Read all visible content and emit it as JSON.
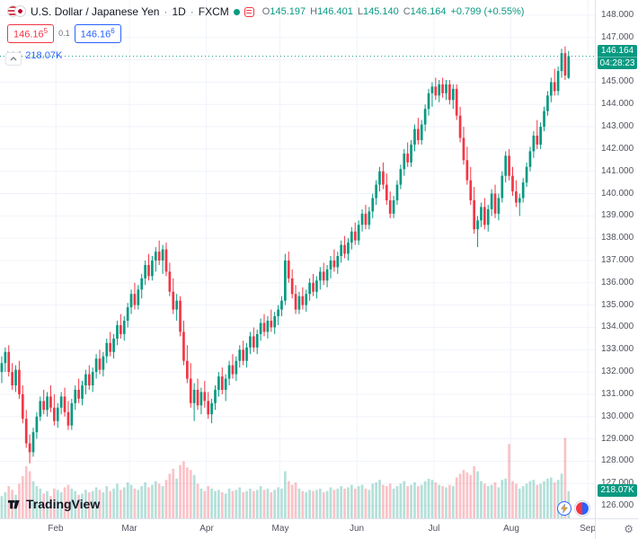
{
  "header": {
    "symbol": "U.S. Dollar / Japanese Yen",
    "sep": "·",
    "interval": "1D",
    "exchange": "FXCM",
    "ohlc": {
      "open_label": "O",
      "open": "145.197",
      "high_label": "H",
      "high": "146.401",
      "low_label": "L",
      "low": "145.140",
      "close_label": "C",
      "close": "146.164",
      "change": "+0.799 (+0.55%)"
    },
    "sell": {
      "price": "146.16",
      "sup": "5"
    },
    "spread": "0.1",
    "buy": {
      "price": "146.16",
      "sup": "6"
    },
    "volume_label": "Vol",
    "volume_value": "218.07K"
  },
  "axis": {
    "price_badge": {
      "price": "146.164",
      "countdown": "04:28:23"
    },
    "volume_badge": "218.07K"
  },
  "footer": {
    "logo_text": "TradingView"
  },
  "colors": {
    "up": "#089981",
    "down": "#f23645",
    "up_soft": "rgba(8,153,129,0.30)",
    "down_soft": "rgba(242,54,69,0.30)",
    "accent_blue": "#2962ff",
    "grid": "#f0f3fa"
  },
  "chart_data": {
    "type": "candlestick",
    "title": "U.S. Dollar / Japanese Yen",
    "interval": "1D",
    "exchange": "FXCM",
    "last_price": 146.164,
    "last_volume_k": 218.07,
    "price_range": [
      126,
      148
    ],
    "price_axis_ticks": [
      "148.000",
      "147.000",
      "146.000",
      "145.000",
      "144.000",
      "143.000",
      "142.000",
      "141.000",
      "140.000",
      "139.000",
      "138.000",
      "137.000",
      "136.000",
      "135.000",
      "134.000",
      "133.000",
      "132.000",
      "131.000",
      "130.000",
      "129.000",
      "128.000",
      "127.000",
      "126.000"
    ],
    "months": [
      {
        "label": "Feb",
        "index": 16
      },
      {
        "label": "Mar",
        "index": 37
      },
      {
        "label": "Apr",
        "index": 59
      },
      {
        "label": "May",
        "index": 80
      },
      {
        "label": "Jun",
        "index": 102
      },
      {
        "label": "Jul",
        "index": 124
      },
      {
        "label": "Aug",
        "index": 146
      },
      {
        "label": "Sep",
        "index": 168
      }
    ],
    "total_slots": 170,
    "candles_format": [
      "open",
      "high",
      "low",
      "close",
      "volume_k"
    ],
    "candles": [
      [
        132.0,
        132.7,
        131.5,
        132.4,
        180
      ],
      [
        132.4,
        133.1,
        132.0,
        132.9,
        210
      ],
      [
        132.9,
        133.2,
        131.8,
        132.0,
        260
      ],
      [
        132.0,
        132.4,
        131.2,
        131.4,
        230
      ],
      [
        131.4,
        132.3,
        131.1,
        132.1,
        190
      ],
      [
        132.1,
        132.5,
        130.8,
        131.0,
        280
      ],
      [
        131.0,
        131.4,
        129.7,
        129.9,
        340
      ],
      [
        129.9,
        130.3,
        128.6,
        128.8,
        420
      ],
      [
        128.8,
        129.2,
        127.9,
        128.4,
        380
      ],
      [
        128.4,
        129.5,
        128.2,
        129.3,
        300
      ],
      [
        129.3,
        130.2,
        129.0,
        130.0,
        260
      ],
      [
        130.0,
        130.9,
        129.8,
        130.7,
        240
      ],
      [
        130.7,
        131.2,
        130.1,
        130.3,
        200
      ],
      [
        130.3,
        131.1,
        130.0,
        130.9,
        220
      ],
      [
        130.9,
        131.4,
        130.2,
        130.4,
        180
      ],
      [
        130.4,
        131.0,
        129.6,
        129.8,
        240
      ],
      [
        129.8,
        130.6,
        129.5,
        130.4,
        230
      ],
      [
        130.4,
        131.1,
        130.1,
        130.9,
        210
      ],
      [
        130.9,
        131.3,
        130.0,
        130.2,
        250
      ],
      [
        130.2,
        130.7,
        129.4,
        129.6,
        270
      ],
      [
        129.6,
        130.8,
        129.4,
        130.6,
        240
      ],
      [
        130.6,
        131.4,
        130.3,
        131.2,
        220
      ],
      [
        131.2,
        131.7,
        130.6,
        130.8,
        190
      ],
      [
        130.8,
        131.6,
        130.5,
        131.4,
        200
      ],
      [
        131.4,
        132.1,
        131.0,
        131.9,
        230
      ],
      [
        131.9,
        132.3,
        131.2,
        131.4,
        210
      ],
      [
        131.4,
        132.2,
        131.1,
        132.0,
        220
      ],
      [
        132.0,
        132.8,
        131.7,
        132.6,
        250
      ],
      [
        132.6,
        133.0,
        131.9,
        132.1,
        230
      ],
      [
        132.1,
        132.9,
        131.8,
        132.7,
        210
      ],
      [
        132.7,
        133.5,
        132.4,
        133.3,
        260
      ],
      [
        133.3,
        133.8,
        132.7,
        132.9,
        220
      ],
      [
        132.9,
        133.7,
        132.6,
        133.5,
        240
      ],
      [
        133.5,
        134.3,
        133.2,
        134.1,
        280
      ],
      [
        134.1,
        134.6,
        133.5,
        133.7,
        230
      ],
      [
        133.7,
        134.5,
        133.4,
        134.3,
        250
      ],
      [
        134.3,
        135.1,
        134.0,
        134.9,
        290
      ],
      [
        134.9,
        135.7,
        134.6,
        135.5,
        270
      ],
      [
        135.5,
        136.0,
        134.8,
        135.0,
        240
      ],
      [
        135.0,
        135.9,
        134.8,
        135.7,
        230
      ],
      [
        135.7,
        136.4,
        135.3,
        136.2,
        260
      ],
      [
        136.2,
        137.0,
        135.9,
        136.8,
        290
      ],
      [
        136.8,
        137.3,
        136.1,
        136.3,
        250
      ],
      [
        136.3,
        137.2,
        136.1,
        137.0,
        270
      ],
      [
        137.0,
        137.6,
        136.5,
        137.4,
        300
      ],
      [
        137.4,
        137.9,
        136.8,
        137.0,
        280
      ],
      [
        137.0,
        137.7,
        136.4,
        137.5,
        260
      ],
      [
        137.5,
        137.8,
        136.3,
        136.5,
        310
      ],
      [
        136.5,
        136.9,
        135.4,
        135.6,
        360
      ],
      [
        135.6,
        136.2,
        134.6,
        134.8,
        400
      ],
      [
        134.8,
        135.5,
        134.3,
        135.2,
        320
      ],
      [
        135.2,
        135.4,
        133.6,
        133.8,
        430
      ],
      [
        133.8,
        134.3,
        132.3,
        132.5,
        460
      ],
      [
        132.5,
        133.2,
        131.5,
        131.7,
        410
      ],
      [
        131.7,
        132.4,
        130.4,
        130.6,
        390
      ],
      [
        130.6,
        131.5,
        129.8,
        131.2,
        350
      ],
      [
        131.2,
        131.7,
        130.3,
        130.5,
        280
      ],
      [
        130.5,
        131.3,
        130.1,
        131.1,
        240
      ],
      [
        131.1,
        131.6,
        130.4,
        130.7,
        220
      ],
      [
        130.7,
        131.1,
        129.9,
        130.1,
        260
      ],
      [
        130.1,
        130.8,
        129.7,
        130.6,
        240
      ],
      [
        130.6,
        131.4,
        130.3,
        131.2,
        220
      ],
      [
        131.2,
        132.0,
        130.9,
        131.8,
        230
      ],
      [
        131.8,
        132.2,
        131.0,
        131.2,
        210
      ],
      [
        131.2,
        131.9,
        130.7,
        131.7,
        200
      ],
      [
        131.7,
        132.5,
        131.4,
        132.3,
        240
      ],
      [
        132.3,
        132.8,
        131.7,
        131.9,
        220
      ],
      [
        131.9,
        132.7,
        131.6,
        132.5,
        230
      ],
      [
        132.5,
        133.2,
        132.2,
        133.0,
        250
      ],
      [
        133.0,
        133.4,
        132.3,
        132.5,
        210
      ],
      [
        132.5,
        133.3,
        132.2,
        133.1,
        220
      ],
      [
        133.1,
        133.8,
        132.8,
        133.6,
        240
      ],
      [
        133.6,
        134.0,
        132.9,
        133.1,
        220
      ],
      [
        133.1,
        133.9,
        132.8,
        133.7,
        230
      ],
      [
        133.7,
        134.4,
        133.4,
        134.2,
        260
      ],
      [
        134.2,
        134.6,
        133.6,
        133.8,
        230
      ],
      [
        133.8,
        134.5,
        133.5,
        134.3,
        240
      ],
      [
        134.3,
        134.8,
        133.8,
        134.0,
        210
      ],
      [
        134.0,
        134.7,
        133.7,
        134.5,
        230
      ],
      [
        134.5,
        135.0,
        134.1,
        134.8,
        250
      ],
      [
        134.8,
        135.4,
        134.5,
        135.2,
        240
      ],
      [
        135.2,
        137.3,
        135.0,
        137.0,
        380
      ],
      [
        137.0,
        137.4,
        136.0,
        136.2,
        300
      ],
      [
        136.2,
        136.6,
        135.3,
        135.5,
        270
      ],
      [
        135.5,
        135.9,
        134.6,
        134.8,
        290
      ],
      [
        134.8,
        135.6,
        134.6,
        135.4,
        240
      ],
      [
        135.4,
        135.8,
        134.8,
        135.0,
        220
      ],
      [
        135.0,
        135.7,
        134.7,
        135.5,
        210
      ],
      [
        135.5,
        136.2,
        135.2,
        136.0,
        230
      ],
      [
        136.0,
        136.4,
        135.4,
        135.6,
        220
      ],
      [
        135.6,
        136.3,
        135.3,
        136.1,
        230
      ],
      [
        136.1,
        136.7,
        135.7,
        136.5,
        240
      ],
      [
        136.5,
        136.9,
        135.9,
        136.1,
        210
      ],
      [
        136.1,
        136.8,
        135.8,
        136.6,
        220
      ],
      [
        136.6,
        137.2,
        136.2,
        137.0,
        250
      ],
      [
        137.0,
        137.5,
        136.5,
        136.7,
        230
      ],
      [
        136.7,
        137.4,
        136.4,
        137.2,
        240
      ],
      [
        137.2,
        137.9,
        136.9,
        137.7,
        260
      ],
      [
        137.7,
        138.1,
        137.1,
        137.3,
        240
      ],
      [
        137.3,
        138.0,
        137.0,
        137.8,
        250
      ],
      [
        137.8,
        138.5,
        137.5,
        138.3,
        270
      ],
      [
        138.3,
        138.7,
        137.7,
        137.9,
        240
      ],
      [
        137.9,
        138.8,
        137.7,
        138.6,
        260
      ],
      [
        138.6,
        139.3,
        138.3,
        139.1,
        270
      ],
      [
        139.1,
        139.5,
        138.4,
        138.6,
        240
      ],
      [
        138.6,
        139.4,
        138.4,
        139.2,
        230
      ],
      [
        139.2,
        140.0,
        138.9,
        139.8,
        280
      ],
      [
        139.8,
        140.6,
        139.5,
        140.4,
        290
      ],
      [
        140.4,
        141.2,
        140.1,
        141.0,
        310
      ],
      [
        141.0,
        141.4,
        140.2,
        140.4,
        270
      ],
      [
        140.4,
        140.9,
        139.5,
        139.7,
        260
      ],
      [
        139.7,
        140.1,
        138.9,
        139.1,
        280
      ],
      [
        139.1,
        139.9,
        138.9,
        139.7,
        240
      ],
      [
        139.7,
        140.6,
        139.5,
        140.4,
        260
      ],
      [
        140.4,
        141.3,
        140.2,
        141.1,
        280
      ],
      [
        141.1,
        142.0,
        140.8,
        141.8,
        300
      ],
      [
        141.8,
        142.3,
        141.2,
        141.4,
        260
      ],
      [
        141.4,
        142.4,
        141.2,
        142.2,
        270
      ],
      [
        142.2,
        143.1,
        141.9,
        142.9,
        290
      ],
      [
        142.9,
        143.4,
        142.2,
        142.4,
        260
      ],
      [
        142.4,
        143.3,
        142.2,
        143.1,
        270
      ],
      [
        143.1,
        144.0,
        142.8,
        143.8,
        300
      ],
      [
        143.8,
        144.7,
        143.5,
        144.5,
        320
      ],
      [
        144.5,
        145.0,
        143.9,
        144.8,
        310
      ],
      [
        144.8,
        145.2,
        144.2,
        144.4,
        290
      ],
      [
        144.4,
        145.1,
        144.1,
        144.9,
        270
      ],
      [
        144.9,
        145.2,
        144.3,
        144.5,
        260
      ],
      [
        144.5,
        145.1,
        144.2,
        144.9,
        250
      ],
      [
        144.9,
        145.1,
        144.0,
        144.2,
        270
      ],
      [
        144.2,
        144.9,
        143.8,
        144.7,
        260
      ],
      [
        144.7,
        144.9,
        143.3,
        143.5,
        330
      ],
      [
        143.5,
        143.9,
        142.3,
        142.5,
        360
      ],
      [
        142.5,
        143.0,
        141.3,
        141.5,
        390
      ],
      [
        141.5,
        142.1,
        140.4,
        140.6,
        370
      ],
      [
        140.6,
        141.2,
        139.5,
        139.7,
        350
      ],
      [
        139.7,
        140.3,
        138.2,
        138.4,
        420
      ],
      [
        138.4,
        139.0,
        137.6,
        138.8,
        380
      ],
      [
        138.8,
        139.6,
        138.5,
        139.4,
        300
      ],
      [
        139.4,
        139.8,
        138.4,
        138.6,
        280
      ],
      [
        138.6,
        139.5,
        138.3,
        139.3,
        260
      ],
      [
        139.3,
        140.2,
        139.0,
        140.0,
        270
      ],
      [
        140.0,
        140.4,
        138.9,
        139.1,
        290
      ],
      [
        139.1,
        140.0,
        138.8,
        139.8,
        250
      ],
      [
        139.8,
        141.0,
        139.6,
        140.8,
        310
      ],
      [
        140.8,
        141.9,
        140.5,
        141.7,
        320
      ],
      [
        141.7,
        142.0,
        140.6,
        140.8,
        600
      ],
      [
        140.8,
        141.2,
        139.9,
        140.1,
        300
      ],
      [
        140.1,
        140.6,
        139.4,
        139.6,
        280
      ],
      [
        139.6,
        140.0,
        139.0,
        139.8,
        240
      ],
      [
        139.8,
        140.7,
        139.6,
        140.5,
        260
      ],
      [
        140.5,
        141.4,
        140.3,
        141.2,
        280
      ],
      [
        141.2,
        142.1,
        141.0,
        141.9,
        300
      ],
      [
        141.9,
        142.8,
        141.6,
        142.6,
        310
      ],
      [
        142.6,
        143.3,
        142.0,
        142.2,
        270
      ],
      [
        142.2,
        143.2,
        142.0,
        143.0,
        280
      ],
      [
        143.0,
        143.9,
        142.8,
        143.7,
        300
      ],
      [
        143.7,
        144.6,
        143.5,
        144.4,
        320
      ],
      [
        144.4,
        145.2,
        144.1,
        145.0,
        330
      ],
      [
        145.0,
        145.6,
        144.4,
        144.6,
        290
      ],
      [
        144.6,
        145.7,
        144.4,
        145.5,
        310
      ],
      [
        145.5,
        146.5,
        145.2,
        146.3,
        360
      ],
      [
        146.3,
        146.6,
        145.1,
        145.3,
        650
      ],
      [
        145.197,
        146.401,
        145.14,
        146.164,
        218.07
      ]
    ]
  }
}
